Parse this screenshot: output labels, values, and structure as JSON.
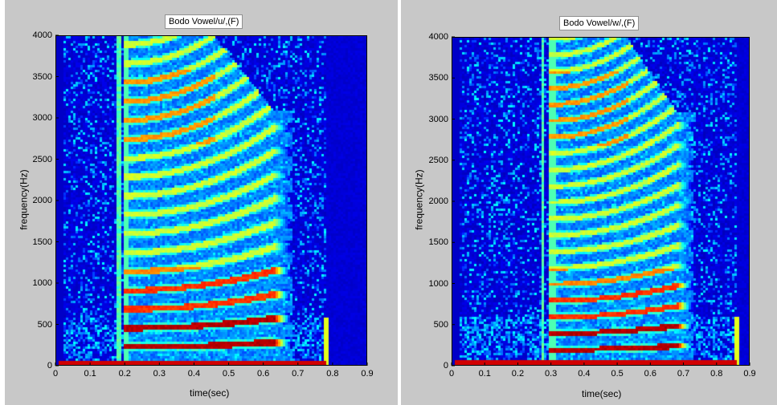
{
  "chart_data": [
    {
      "type": "heatmap",
      "kind": "spectrogram",
      "title": "Bodo Vowel/u/,(F)",
      "xlabel": "time(sec)",
      "ylabel": "frequency(Hz)",
      "xlim": [
        0,
        0.9
      ],
      "ylim": [
        0,
        4000
      ],
      "xticks": [
        "0",
        "0.1",
        "0.2",
        "0.3",
        "0.4",
        "0.5",
        "0.6",
        "0.7",
        "0.8",
        "0.9"
      ],
      "yticks": [
        "0",
        "500",
        "1000",
        "1500",
        "2000",
        "2500",
        "3000",
        "3500",
        "4000"
      ],
      "colormap": "jet",
      "voiced_segment_sec": [
        0.2,
        0.63
      ],
      "silence_end_sec": 0.78,
      "fundamental_hz": 230,
      "f0_rise_hz": 60,
      "stop_burst_sec": 0.18
    },
    {
      "type": "heatmap",
      "kind": "spectrogram",
      "title": "Bodo Vowel/w/,(F)",
      "xlabel": "time(sec)",
      "ylabel": "frequency(Hz)",
      "xlim": [
        0,
        0.9
      ],
      "ylim": [
        0,
        4000
      ],
      "xticks": [
        "0",
        "0.1",
        "0.2",
        "0.3",
        "0.4",
        "0.5",
        "0.6",
        "0.7",
        "0.8",
        "0.9"
      ],
      "yticks": [
        "0",
        "500",
        "1000",
        "1500",
        "2000",
        "2500",
        "3000",
        "3500",
        "4000"
      ],
      "colormap": "jet",
      "voiced_segment_sec": [
        0.3,
        0.68
      ],
      "silence_end_sec": 0.86,
      "fundamental_hz": 200,
      "f0_rise_hz": 45,
      "stop_burst_sec": 0.27
    }
  ]
}
